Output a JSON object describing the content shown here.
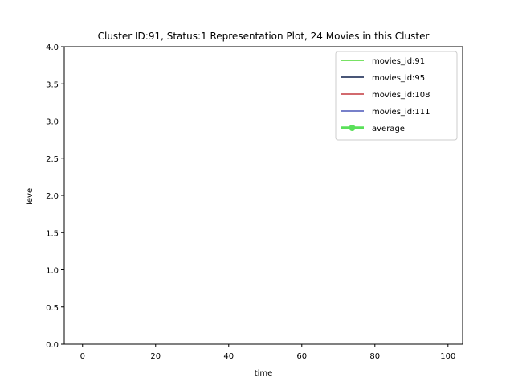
{
  "chart_data": {
    "type": "line",
    "title": "Cluster ID:91, Status:1 Representation Plot, 24 Movies in this Cluster",
    "xlabel": "time",
    "ylabel": "level",
    "xlim": [
      -5,
      104
    ],
    "ylim": [
      0,
      4.0
    ],
    "x_ticks": [
      0,
      20,
      40,
      60,
      80,
      100
    ],
    "y_ticks": [
      0.0,
      0.5,
      1.0,
      1.5,
      2.0,
      2.5,
      3.0,
      3.5,
      4.0
    ],
    "x_tick_labels": [
      "0",
      "20",
      "40",
      "60",
      "80",
      "100"
    ],
    "y_tick_labels": [
      "0.0",
      "0.5",
      "1.0",
      "1.5",
      "2.0",
      "2.5",
      "3.0",
      "3.5",
      "4.0"
    ],
    "grid": false,
    "legend_position": "upper right",
    "series": [
      {
        "name": "movies_id:91",
        "color": "#4cd830",
        "marker": "none",
        "width": "normal",
        "values": []
      },
      {
        "name": "movies_id:95",
        "color": "#0d1e4a",
        "marker": "none",
        "width": "normal",
        "values": []
      },
      {
        "name": "movies_id:108",
        "color": "#c4383e",
        "marker": "none",
        "width": "normal",
        "values": []
      },
      {
        "name": "movies_id:111",
        "color": "#4a56b8",
        "marker": "none",
        "width": "normal",
        "values": []
      },
      {
        "name": "average",
        "color": "#5ae05a",
        "marker": "circle",
        "width": "thick",
        "values": []
      }
    ]
  }
}
